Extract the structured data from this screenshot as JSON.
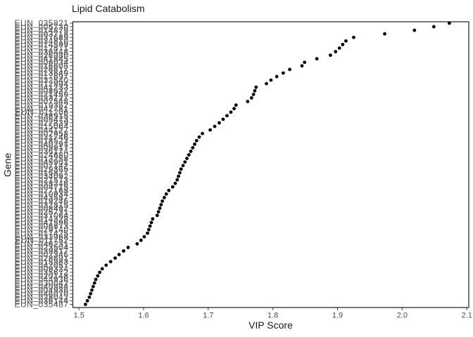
{
  "title": "Lipid Catabolism",
  "chart_data": {
    "type": "scatter",
    "title": "Lipid Catabolism",
    "xlabel": "VIP Score",
    "ylabel": "Gene",
    "xlim": [
      1.5,
      2.1
    ],
    "xticks": [
      "1.5",
      "1.6",
      "1.7",
      "1.8",
      "1.9",
      "2.0",
      "2.1"
    ],
    "grid": false,
    "legend": "none",
    "point_color": "#000000",
    "axis_text_color": "#4d4d4d",
    "title_color": "#1a1a1a",
    "panel_border_color": "#1a1a1a",
    "background": "#ffffff",
    "genes": [
      "EUN_035821",
      "EUN_006730",
      "EUN_014879",
      "EUN_003718",
      "EUN_037689",
      "EUN_034810",
      "EUN_014599",
      "EUN_012871",
      "EUN_036448",
      "EUN_026980",
      "EUN_041845",
      "EUN_006034",
      "EUN_016605",
      "EUN_026617",
      "EUN_013649",
      "EUN_017697",
      "EUN_032540",
      "EUN_012994",
      "EUN_041233",
      "EUN_008637",
      "EUN_021459",
      "EUN_033127",
      "EUN_007548",
      "EUN_019362",
      "EUN_042781",
      "EUN_011206",
      "EUN_038915",
      "EUN_005473",
      "EUN_027839",
      "EUN_015064",
      "EUN_044127",
      "EUN_002958",
      "EUN_031746",
      "EUN_018523",
      "EUN_040291",
      "EUN_009817",
      "EUN_036174",
      "EUN_024680",
      "EUN_013258",
      "EUN_045901",
      "EUN_007142",
      "EUN_029365",
      "EUN_016827",
      "EUN_034092",
      "EUN_021573",
      "EUN_038246",
      "EUN_004715",
      "EUN_027168",
      "EUN_010934",
      "EUN_043587",
      "EUN_019246",
      "EUN_032815",
      "EUN_008492",
      "EUN_025731",
      "EUN_037064",
      "EUN_014328",
      "EUN_041596",
      "EUN_006873",
      "EUN_029140",
      "EUN_017425",
      "EUN_033968",
      "EUN_011752",
      "EUN_046231",
      "EUN_023504",
      "EUN_039817",
      "EUN_002346",
      "EUN_028691",
      "EUN_015983",
      "EUN_042057",
      "EUN_009324",
      "EUN_035672",
      "EUN_020148",
      "EUN_044936",
      "EUN_030042",
      "EUN_040984",
      "EUN_004936",
      "EUN_046070",
      "EUN_038042",
      "EUN_036144",
      "EUN_035487"
    ],
    "vip": [
      2.073,
      2.049,
      2.019,
      1.973,
      1.925,
      1.913,
      1.908,
      1.903,
      1.897,
      1.889,
      1.868,
      1.849,
      1.845,
      1.826,
      1.816,
      1.806,
      1.797,
      1.79,
      1.774,
      1.772,
      1.77,
      1.767,
      1.761,
      1.743,
      1.74,
      1.735,
      1.729,
      1.723,
      1.717,
      1.71,
      1.703,
      1.691,
      1.686,
      1.682,
      1.679,
      1.676,
      1.673,
      1.67,
      1.667,
      1.664,
      1.661,
      1.658,
      1.656,
      1.654,
      1.652,
      1.649,
      1.645,
      1.639,
      1.635,
      1.632,
      1.629,
      1.627,
      1.625,
      1.623,
      1.621,
      1.614,
      1.612,
      1.61,
      1.608,
      1.606,
      1.601,
      1.596,
      1.59,
      1.576,
      1.569,
      1.562,
      1.556,
      1.549,
      1.542,
      1.536,
      1.532,
      1.529,
      1.526,
      1.524,
      1.522,
      1.52,
      1.518,
      1.516,
      1.513,
      1.51
    ]
  }
}
